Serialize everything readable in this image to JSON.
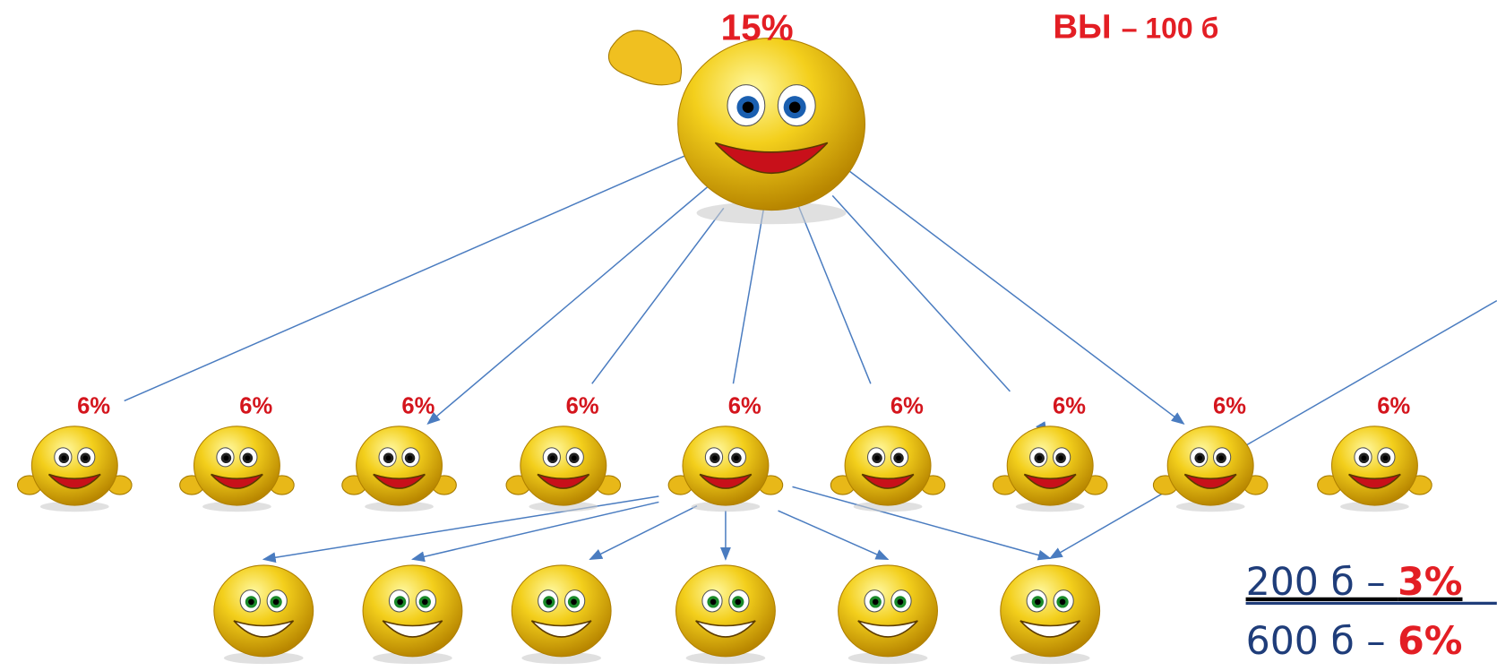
{
  "top": {
    "label": "15%"
  },
  "you": {
    "name": "ВЫ",
    "amount": "– 100 б"
  },
  "level1": [
    "6%",
    "6%",
    "6%",
    "6%",
    "6%",
    "6%",
    "6%",
    "6%",
    "6%"
  ],
  "legend": [
    {
      "amount": "200 б – ",
      "percent": "3%"
    },
    {
      "amount": "600 б – ",
      "percent": "6%"
    }
  ]
}
